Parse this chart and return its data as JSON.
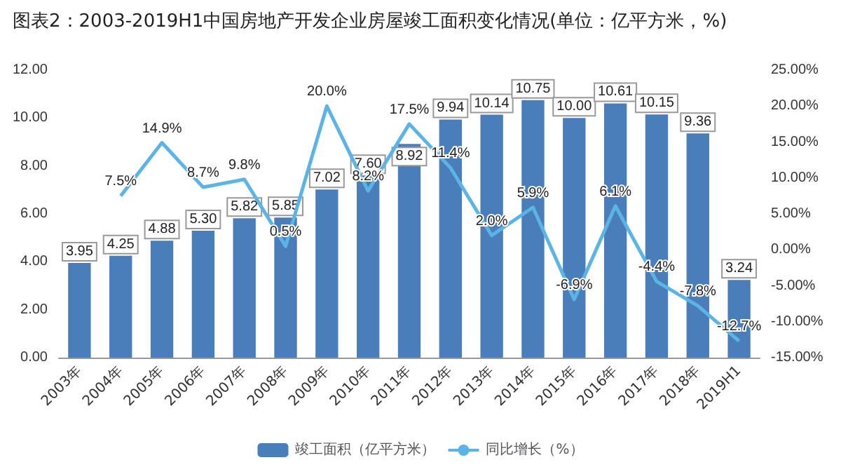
{
  "chart_data": {
    "type": "bar",
    "title": "图表2：2003-2019H1中国房地产开发企业房屋竣工面积变化情况(单位：亿平方米，%)",
    "categories": [
      "2003年",
      "2004年",
      "2005年",
      "2006年",
      "2007年",
      "2008年",
      "2009年",
      "2010年",
      "2011年",
      "2012年",
      "2013年",
      "2014年",
      "2015年",
      "2016年",
      "2017年",
      "2018年",
      "2019H1"
    ],
    "series": [
      {
        "name": "竣工面积（亿平方米）",
        "type": "bar",
        "color": "#4a7ebb",
        "values": [
          3.95,
          4.25,
          4.88,
          5.3,
          5.82,
          5.85,
          7.02,
          7.6,
          8.92,
          9.94,
          10.14,
          10.75,
          10.0,
          10.61,
          10.15,
          9.36,
          3.24
        ],
        "value_labels": [
          "3.95",
          "4.25",
          "4.88",
          "5.30",
          "5.82",
          "5.85",
          "7.02",
          "7.60",
          "8.92",
          "9.94",
          "10.14",
          "10.75",
          "10.00",
          "10.61",
          "10.15",
          "9.36",
          "3.24"
        ]
      },
      {
        "name": "同比增长（%）",
        "type": "line",
        "axis": "y2",
        "color": "#5bb4e5",
        "values": [
          null,
          7.5,
          14.9,
          8.7,
          9.8,
          0.5,
          20.0,
          8.2,
          17.5,
          11.4,
          2.0,
          5.9,
          -6.9,
          6.1,
          -4.4,
          -7.8,
          -12.7
        ],
        "value_labels": [
          null,
          "7.5%",
          "14.9%",
          "8.7%",
          "9.8%",
          "0.5%",
          "20.0%",
          "8.2%",
          "17.5%",
          "11.4%",
          "2.0%",
          "5.9%",
          "-6.9%",
          "6.1%",
          "-4.4%",
          "-7.8%",
          "-12.7%"
        ]
      }
    ],
    "ylim": [
      0,
      12
    ],
    "yticks": [
      {
        "value": 0,
        "label": "0.00"
      },
      {
        "value": 2,
        "label": "2.00"
      },
      {
        "value": 4,
        "label": "4.00"
      },
      {
        "value": 6,
        "label": "6.00"
      },
      {
        "value": 8,
        "label": "8.00"
      },
      {
        "value": 10,
        "label": "10.00"
      },
      {
        "value": 12,
        "label": "12.00"
      }
    ],
    "y2lim": [
      -15,
      25
    ],
    "y2ticks": [
      {
        "value": -15,
        "label": "-15.00%"
      },
      {
        "value": -10,
        "label": "-10.00%"
      },
      {
        "value": -5,
        "label": "-5.00%"
      },
      {
        "value": 0,
        "label": "0.00%"
      },
      {
        "value": 5,
        "label": "5.00%"
      },
      {
        "value": 10,
        "label": "10.00%"
      },
      {
        "value": 15,
        "label": "15.00%"
      },
      {
        "value": 20,
        "label": "20.00%"
      },
      {
        "value": 25,
        "label": "25.00%"
      }
    ],
    "legend": "bottom",
    "marker": "none"
  }
}
